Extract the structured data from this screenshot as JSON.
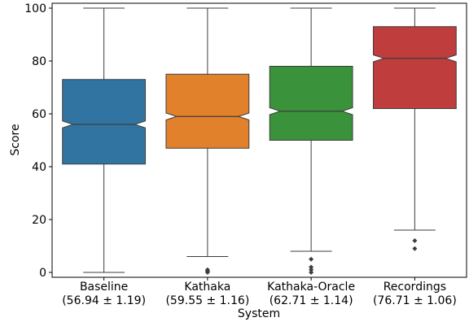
{
  "chart_data": {
    "type": "box",
    "title": "",
    "xlabel": "System",
    "ylabel": "Score",
    "ylim": [
      0,
      100
    ],
    "yticks": [
      0,
      20,
      40,
      60,
      80,
      100
    ],
    "grid": false,
    "notched": true,
    "categories": [
      {
        "name": "Baseline",
        "mean_label": "(56.94 ± 1.19)"
      },
      {
        "name": "Kathaka",
        "mean_label": "(59.55 ± 1.16)"
      },
      {
        "name": "Kathaka-Oracle",
        "mean_label": "(62.71 ± 1.14)"
      },
      {
        "name": "Recordings",
        "mean_label": "(76.71 ± 1.06)"
      }
    ],
    "boxes": [
      {
        "category": "Baseline",
        "color": "#3274a1",
        "whisker_low": 0,
        "q1": 41,
        "median": 56,
        "q3": 73,
        "whisker_high": 100,
        "notch_low": 54.7,
        "notch_high": 57.3,
        "outliers": []
      },
      {
        "category": "Kathaka",
        "color": "#e1812c",
        "whisker_low": 6,
        "q1": 47,
        "median": 59,
        "q3": 75,
        "whisker_high": 100,
        "notch_low": 57.7,
        "notch_high": 60.3,
        "outliers": [
          0,
          0.5,
          1
        ]
      },
      {
        "category": "Kathaka-Oracle",
        "color": "#3a923a",
        "whisker_low": 8,
        "q1": 50,
        "median": 61,
        "q3": 78,
        "whisker_high": 100,
        "notch_low": 59.7,
        "notch_high": 62.3,
        "outliers": [
          0,
          1,
          2,
          5
        ]
      },
      {
        "category": "Recordings",
        "color": "#c03d3e",
        "whisker_low": 16,
        "q1": 62,
        "median": 81,
        "q3": 93,
        "whisker_high": 100,
        "notch_low": 79.7,
        "notch_high": 82.3,
        "outliers": [
          9,
          12
        ]
      }
    ]
  }
}
